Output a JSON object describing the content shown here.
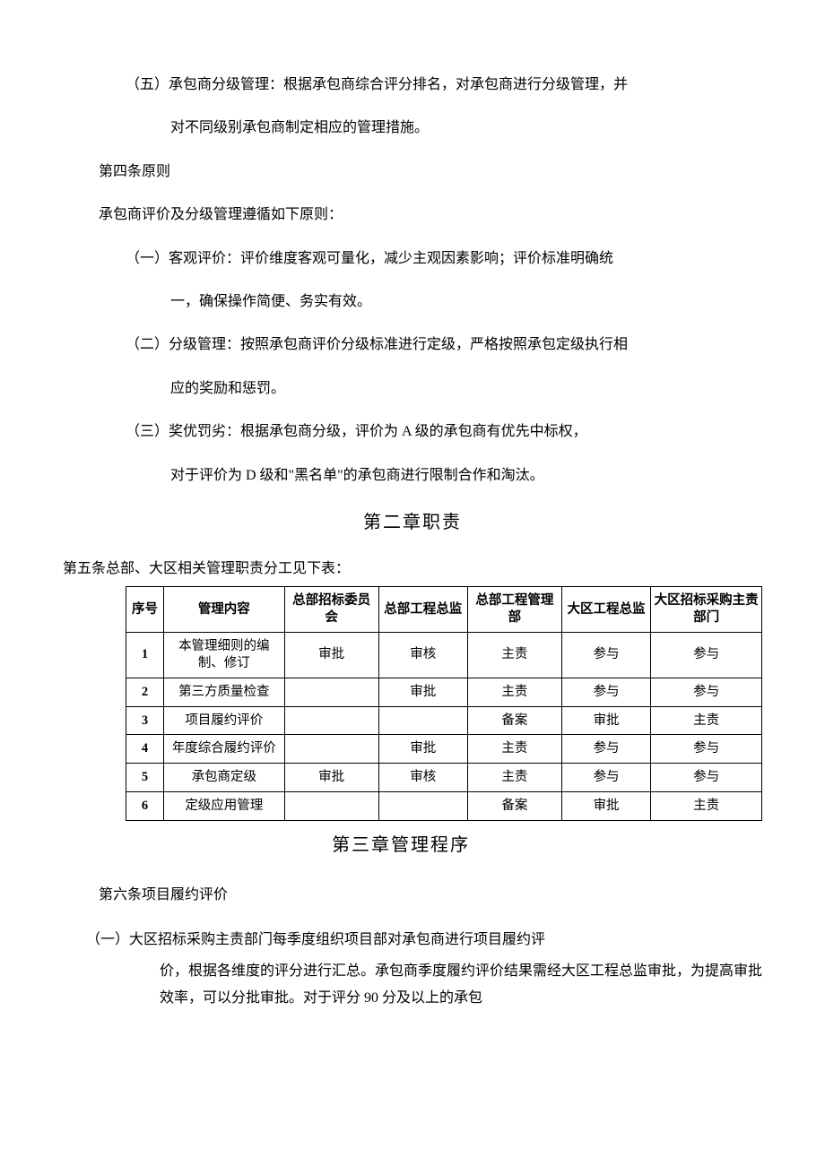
{
  "para1a": "（五）承包商分级管理：根据承包商综合评分排名，对承包商进行分级管理，并",
  "para1b": "对不同级别承包商制定相应的管理措施。",
  "article4_title": "第四条原则",
  "article4_intro": "承包商评价及分级管理遵循如下原则：",
  "principle1a": "（一）客观评价：评价维度客观可量化，减少主观因素影响；评价标准明确统",
  "principle1b": "一，确保操作简便、务实有效。",
  "principle2a": "（二）分级管理：按照承包商评价分级标准进行定级，严格按照承包定级执行相",
  "principle2b": "应的奖励和惩罚。",
  "principle3a": "（三）奖优罚劣：根据承包商分级，评价为 A 级的承包商有优先中标权，",
  "principle3b": "对于评价为 D 级和\"黑名单\"的承包商进行限制合作和淘汰。",
  "chapter2_title": "第二章职责",
  "article5_intro": "第五条总部、大区相关管理职责分工见下表：",
  "table": {
    "headers": [
      "序号",
      "管理内容",
      "总部招标委员会",
      "总部工程总监",
      "总部工程管理部",
      "大区工程总监",
      "大区招标采购主责部门"
    ],
    "rows": [
      [
        "1",
        "本管理细则的编制、修订",
        "审批",
        "审核",
        "主责",
        "参与",
        "参与"
      ],
      [
        "2",
        "第三方质量检查",
        "",
        "审批",
        "主责",
        "参与",
        "参与"
      ],
      [
        "3",
        "项目履约评价",
        "",
        "",
        "备案",
        "审批",
        "主责"
      ],
      [
        "4",
        "年度综合履约评价",
        "",
        "审批",
        "主责",
        "参与",
        "参与"
      ],
      [
        "5",
        "承包商定级",
        "审批",
        "审核",
        "主责",
        "参与",
        "参与"
      ],
      [
        "6",
        "定级应用管理",
        "",
        "",
        "备案",
        "审批",
        "主责"
      ]
    ]
  },
  "chapter3_title": "第三章管理程序",
  "article6_title": "第六条项目履约评价",
  "article6_1a": "（一）大区招标采购主责部门每季度组织项目部对承包商进行项目履约评",
  "article6_1b": "价，根据各维度的评分进行汇总。承包商季度履约评价结果需经大区工程总监审批，为提高审批效率，可以分批审批。对于评分 90 分及以上的承包"
}
